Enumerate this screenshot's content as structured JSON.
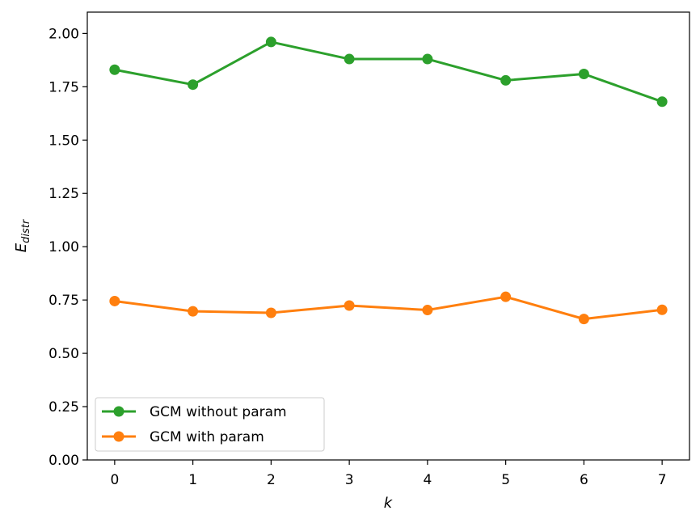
{
  "chart_data": {
    "type": "line",
    "xlabel": "k",
    "ylabel_main": "E",
    "ylabel_sub": "distr",
    "xlim": [
      -0.35,
      7.35
    ],
    "ylim": [
      0,
      2.1
    ],
    "x": [
      0,
      1,
      2,
      3,
      4,
      5,
      6,
      7
    ],
    "xticks": [
      "0",
      "1",
      "2",
      "3",
      "4",
      "5",
      "6",
      "7"
    ],
    "yticks": [
      0.0,
      0.25,
      0.5,
      0.75,
      1.0,
      1.25,
      1.5,
      1.75,
      2.0
    ],
    "ytick_labels": [
      "0.00",
      "0.25",
      "0.50",
      "0.75",
      "1.00",
      "1.25",
      "1.50",
      "1.75",
      "2.00"
    ],
    "grid": false,
    "legend_position": "lower-left",
    "series": [
      {
        "name": "GCM without param",
        "color": "#2ca02c",
        "marker": "circle",
        "values": [
          1.83,
          1.76,
          1.96,
          1.88,
          1.88,
          1.78,
          1.81,
          1.68
        ]
      },
      {
        "name": "GCM with param",
        "color": "#ff7f0e",
        "marker": "circle",
        "values": [
          0.745,
          0.697,
          0.69,
          0.724,
          0.703,
          0.765,
          0.661,
          0.704
        ]
      }
    ]
  }
}
